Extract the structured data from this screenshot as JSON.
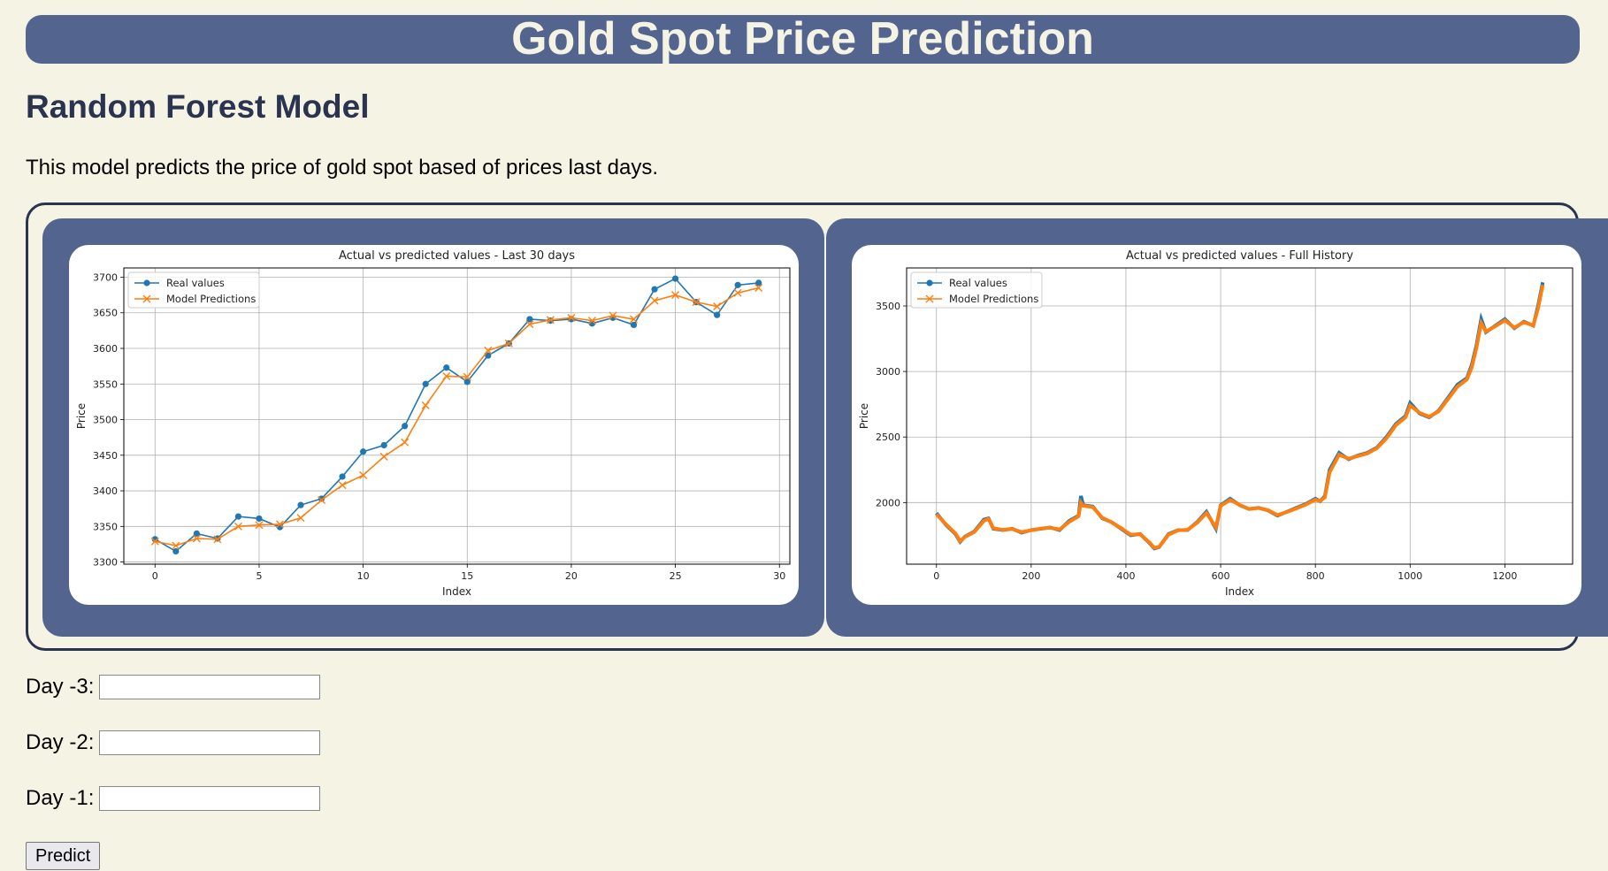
{
  "header": {
    "title": "Gold Spot Price Prediction"
  },
  "model": {
    "name": "Random Forest Model",
    "description": "This model predicts the price of gold spot based of prices last days."
  },
  "form": {
    "fields": [
      {
        "label": "Day -3:",
        "value": ""
      },
      {
        "label": "Day -2:",
        "value": ""
      },
      {
        "label": "Day -1:",
        "value": ""
      }
    ],
    "submit_label": "Predict"
  },
  "chart_data": [
    {
      "type": "line",
      "title": "Actual vs predicted values - Last 30 days",
      "xlabel": "Index",
      "ylabel": "Price",
      "xlim": [
        -1.5,
        30.5
      ],
      "ylim": [
        3297,
        3713
      ],
      "xticks": [
        0,
        5,
        10,
        15,
        20,
        25,
        30
      ],
      "yticks": [
        3300,
        3350,
        3400,
        3450,
        3500,
        3550,
        3600,
        3650,
        3700
      ],
      "grid": true,
      "legend": "top-left",
      "series": [
        {
          "name": "Real values",
          "color": "#1f77b4",
          "marker": "circle",
          "x": [
            0,
            1,
            2,
            3,
            4,
            5,
            6,
            7,
            8,
            9,
            10,
            11,
            12,
            13,
            14,
            15,
            16,
            17,
            18,
            19,
            20,
            21,
            22,
            23,
            24,
            25,
            26,
            27,
            28,
            29
          ],
          "values": [
            3332,
            3315,
            3340,
            3333,
            3364,
            3361,
            3349,
            3380,
            3389,
            3420,
            3455,
            3464,
            3491,
            3550,
            3573,
            3553,
            3590,
            3607,
            3641,
            3639,
            3641,
            3635,
            3643,
            3633,
            3683,
            3698,
            3665,
            3647,
            3689,
            3692
          ]
        },
        {
          "name": "Model Predictions",
          "color": "#ff7f0e",
          "marker": "x",
          "x": [
            0,
            1,
            2,
            3,
            4,
            5,
            6,
            7,
            8,
            9,
            10,
            11,
            12,
            13,
            14,
            15,
            16,
            17,
            18,
            19,
            20,
            21,
            22,
            23,
            24,
            25,
            26,
            27,
            28,
            29
          ],
          "values": [
            3329,
            3323,
            3333,
            3332,
            3350,
            3352,
            3353,
            3362,
            3387,
            3408,
            3422,
            3448,
            3468,
            3520,
            3561,
            3560,
            3597,
            3607,
            3634,
            3640,
            3643,
            3639,
            3646,
            3641,
            3667,
            3675,
            3665,
            3659,
            3678,
            3685
          ]
        }
      ]
    },
    {
      "type": "line",
      "title": "Actual vs predicted values - Full History",
      "xlabel": "Index",
      "ylabel": "Price",
      "xlim": [
        -63,
        1343
      ],
      "ylim": [
        1530,
        3790
      ],
      "xticks": [
        0,
        200,
        400,
        600,
        800,
        1000,
        1200
      ],
      "yticks": [
        2000,
        2500,
        3000,
        3500
      ],
      "grid": true,
      "legend": "top-left",
      "series": [
        {
          "name": "Real values",
          "color": "#1f77b4",
          "marker": "circle",
          "x": [
            0,
            20,
            40,
            50,
            60,
            80,
            100,
            110,
            120,
            140,
            160,
            180,
            200,
            220,
            240,
            260,
            280,
            300,
            305,
            310,
            330,
            350,
            370,
            390,
            410,
            430,
            450,
            460,
            470,
            490,
            510,
            530,
            550,
            570,
            590,
            600,
            620,
            640,
            660,
            680,
            700,
            720,
            740,
            760,
            780,
            800,
            810,
            820,
            830,
            850,
            870,
            890,
            910,
            930,
            950,
            970,
            990,
            1000,
            1020,
            1040,
            1060,
            1080,
            1100,
            1120,
            1130,
            1140,
            1150,
            1160,
            1180,
            1200,
            1220,
            1240,
            1260,
            1270,
            1280
          ],
          "values": [
            1920,
            1830,
            1760,
            1700,
            1740,
            1780,
            1870,
            1880,
            1800,
            1790,
            1800,
            1770,
            1790,
            1800,
            1810,
            1790,
            1860,
            1900,
            2050,
            1980,
            1970,
            1880,
            1850,
            1800,
            1750,
            1760,
            1690,
            1650,
            1660,
            1760,
            1790,
            1790,
            1850,
            1930,
            1800,
            1980,
            2030,
            1980,
            1950,
            1960,
            1940,
            1900,
            1930,
            1960,
            1990,
            2030,
            2010,
            2050,
            2250,
            2380,
            2330,
            2360,
            2380,
            2420,
            2500,
            2600,
            2660,
            2760,
            2680,
            2650,
            2700,
            2800,
            2900,
            2950,
            3050,
            3200,
            3400,
            3300,
            3350,
            3400,
            3330,
            3380,
            3350,
            3500,
            3680
          ]
        },
        {
          "name": "Model Predictions",
          "color": "#ff7f0e",
          "marker": "x",
          "x": [
            0,
            20,
            40,
            50,
            60,
            80,
            100,
            110,
            120,
            140,
            160,
            180,
            200,
            220,
            240,
            260,
            280,
            300,
            305,
            310,
            330,
            350,
            370,
            390,
            410,
            430,
            450,
            460,
            470,
            490,
            510,
            530,
            550,
            570,
            590,
            600,
            620,
            640,
            660,
            680,
            700,
            720,
            740,
            760,
            780,
            800,
            810,
            820,
            830,
            850,
            870,
            890,
            910,
            930,
            950,
            970,
            990,
            1000,
            1020,
            1040,
            1060,
            1080,
            1100,
            1120,
            1130,
            1140,
            1150,
            1160,
            1180,
            1200,
            1220,
            1240,
            1260,
            1270,
            1280
          ],
          "values": [
            1910,
            1835,
            1765,
            1705,
            1738,
            1775,
            1860,
            1875,
            1805,
            1792,
            1798,
            1775,
            1788,
            1802,
            1808,
            1795,
            1852,
            1895,
            2000,
            1975,
            1965,
            1885,
            1848,
            1805,
            1755,
            1758,
            1695,
            1655,
            1662,
            1755,
            1788,
            1792,
            1845,
            1920,
            1810,
            1975,
            2020,
            1982,
            1952,
            1958,
            1942,
            1905,
            1928,
            1955,
            1985,
            2022,
            2012,
            2040,
            2230,
            2365,
            2335,
            2355,
            2375,
            2415,
            2490,
            2590,
            2650,
            2740,
            2685,
            2655,
            2695,
            2790,
            2885,
            2940,
            3030,
            3180,
            3370,
            3305,
            3345,
            3390,
            3335,
            3375,
            3352,
            3480,
            3660
          ]
        }
      ]
    }
  ]
}
